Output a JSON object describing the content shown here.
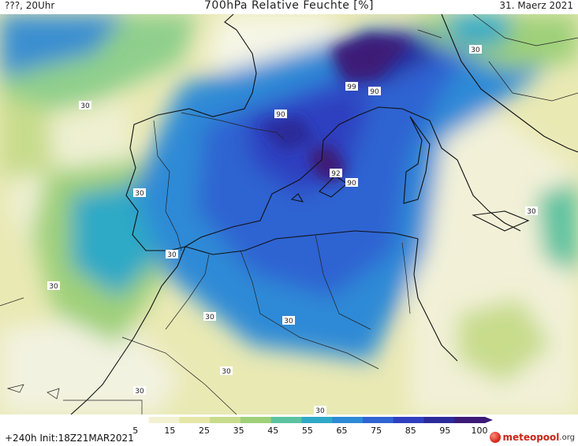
{
  "header": {
    "left": "???, 20Uhr",
    "title": "700hPa Relative Feuchte [%]",
    "date": "31. Maerz 2021"
  },
  "map": {
    "variable": "relative humidity 700hPa",
    "contour_labels": [
      {
        "text": "30",
        "region": "atlantic-north"
      },
      {
        "text": "30",
        "region": "portugal-coast"
      },
      {
        "text": "30",
        "region": "atlantic-west"
      },
      {
        "text": "30",
        "region": "morocco-coast"
      },
      {
        "text": "30",
        "region": "morocco-inland"
      },
      {
        "text": "30",
        "region": "algeria-north"
      },
      {
        "text": "30",
        "region": "sahara"
      },
      {
        "text": "30",
        "region": "western-sahara"
      },
      {
        "text": "30",
        "region": "sahara-south"
      },
      {
        "text": "30",
        "region": "sicily"
      },
      {
        "text": "30",
        "region": "alps-east"
      },
      {
        "text": "90",
        "region": "pyrenees"
      },
      {
        "text": "90",
        "region": "gulf-of-lion"
      },
      {
        "text": "99",
        "region": "southern-france"
      },
      {
        "text": "90",
        "region": "balearic-sea"
      },
      {
        "text": "92",
        "region": "balearic-sea"
      }
    ]
  },
  "legend": {
    "unit": "%",
    "ticks": [
      "5",
      "15",
      "25",
      "35",
      "45",
      "55",
      "65",
      "75",
      "85",
      "95",
      "100"
    ],
    "colors": [
      "#ffffff",
      "#f2f2d2",
      "#e6e6a8",
      "#c8dc8c",
      "#9fd079",
      "#5cc2a0",
      "#2fa9c6",
      "#2d8ad6",
      "#2f64d2",
      "#2f3fc0",
      "#2b2a9a",
      "#3c1a78"
    ]
  },
  "footer": {
    "run": "+240h  Init:18Z21MAR2021",
    "logo_main": "meteopool",
    "logo_suffix": ".org"
  }
}
